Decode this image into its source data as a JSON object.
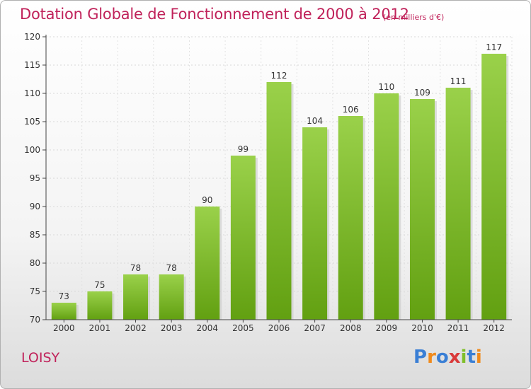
{
  "header": {
    "title": "Dotation Globale de Fonctionnement de 2000 à 2012",
    "unit": "(en milliers d'€)"
  },
  "footer": {
    "commune": "LOISY",
    "logo": "Proxiti"
  },
  "colors": {
    "title": "#c0225a",
    "bar_top": "#9ad14a",
    "bar_bottom": "#62a011"
  },
  "chart_data": {
    "type": "bar",
    "categories": [
      "2000",
      "2001",
      "2002",
      "2003",
      "2004",
      "2005",
      "2006",
      "2007",
      "2008",
      "2009",
      "2010",
      "2011",
      "2012"
    ],
    "values": [
      73,
      75,
      78,
      78,
      90,
      99,
      112,
      104,
      106,
      110,
      109,
      111,
      117
    ],
    "title": "Dotation Globale de Fonctionnement de 2000 à 2012",
    "subtitle": "(en milliers d'€)",
    "xlabel": "",
    "ylabel": "",
    "ylim": [
      70,
      120
    ],
    "yticks": [
      70,
      75,
      80,
      85,
      90,
      95,
      100,
      105,
      110,
      115,
      120
    ],
    "grid": true,
    "data_labels": true
  }
}
